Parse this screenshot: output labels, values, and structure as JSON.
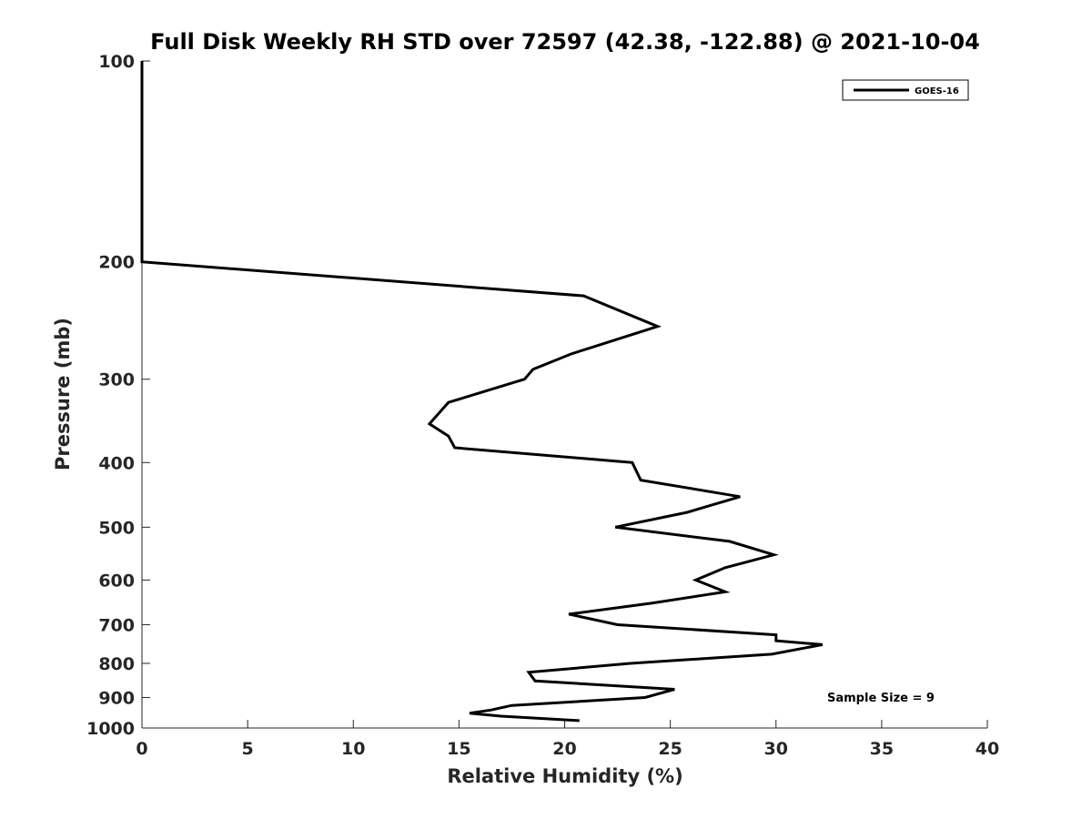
{
  "chart_data": {
    "type": "line",
    "title": "Full Disk Weekly RH STD over 72597 (42.38, -122.88) @ 2021-10-04",
    "xlabel": "Relative Humidity (%)",
    "ylabel": "Pressure (mb)",
    "xlim": [
      0,
      40
    ],
    "ylim": [
      1000,
      100
    ],
    "yscale": "log",
    "y_reversed": true,
    "grid": false,
    "legend_position": "top-right",
    "x_ticks": [
      0,
      5,
      10,
      15,
      20,
      25,
      30,
      35,
      40
    ],
    "y_ticks": [
      100,
      200,
      300,
      400,
      500,
      600,
      700,
      800,
      900,
      1000
    ],
    "series": [
      {
        "name": "GOES-16",
        "color": "#000000",
        "points": [
          {
            "x": 0,
            "y": 100
          },
          {
            "x": 0,
            "y": 150
          },
          {
            "x": 0,
            "y": 200
          },
          {
            "x": 20.9,
            "y": 225
          },
          {
            "x": 24.4,
            "y": 250
          },
          {
            "x": 20.3,
            "y": 275
          },
          {
            "x": 18.5,
            "y": 290
          },
          {
            "x": 18.1,
            "y": 300
          },
          {
            "x": 14.5,
            "y": 325
          },
          {
            "x": 13.6,
            "y": 350
          },
          {
            "x": 14.5,
            "y": 365
          },
          {
            "x": 14.8,
            "y": 380
          },
          {
            "x": 23.2,
            "y": 400
          },
          {
            "x": 23.6,
            "y": 425
          },
          {
            "x": 28.3,
            "y": 450
          },
          {
            "x": 25.8,
            "y": 475
          },
          {
            "x": 22.4,
            "y": 500
          },
          {
            "x": 27.8,
            "y": 525
          },
          {
            "x": 29.9,
            "y": 550
          },
          {
            "x": 27.6,
            "y": 575
          },
          {
            "x": 26.2,
            "y": 600
          },
          {
            "x": 27.6,
            "y": 625
          },
          {
            "x": 24.1,
            "y": 650
          },
          {
            "x": 20.2,
            "y": 675
          },
          {
            "x": 22.5,
            "y": 700
          },
          {
            "x": 30.0,
            "y": 725
          },
          {
            "x": 30.0,
            "y": 740
          },
          {
            "x": 32.2,
            "y": 750
          },
          {
            "x": 29.8,
            "y": 775
          },
          {
            "x": 23.1,
            "y": 800
          },
          {
            "x": 18.3,
            "y": 825
          },
          {
            "x": 18.6,
            "y": 850
          },
          {
            "x": 25.2,
            "y": 875
          },
          {
            "x": 23.8,
            "y": 900
          },
          {
            "x": 17.5,
            "y": 925
          },
          {
            "x": 16.5,
            "y": 940
          },
          {
            "x": 15.5,
            "y": 950
          },
          {
            "x": 17.0,
            "y": 960
          },
          {
            "x": 20.7,
            "y": 975
          }
        ]
      }
    ],
    "annotations": [
      {
        "text": "Sample Size = 9",
        "position": "bottom-right"
      }
    ]
  }
}
